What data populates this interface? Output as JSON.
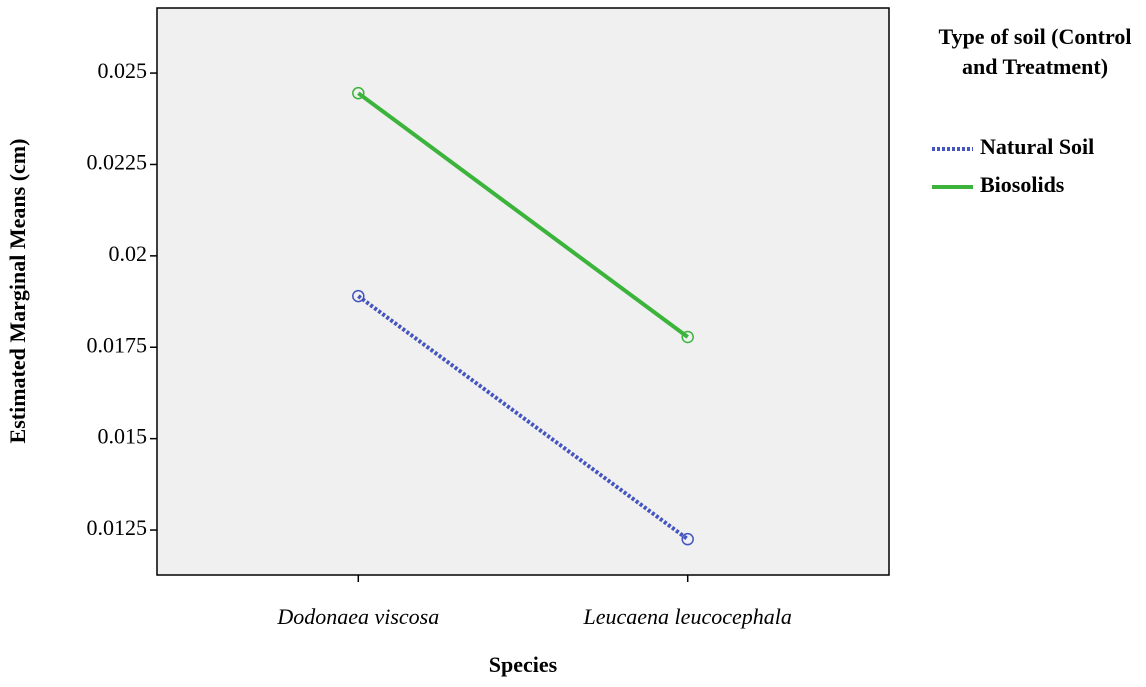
{
  "chart_data": {
    "type": "line",
    "x_label": "Species",
    "y_label": "Estimated Marginal Means (cm)",
    "legend_title": "Type of soil (Control and Treatment)",
    "legend_position": "right",
    "categories": [
      "Dodonaea viscosa",
      "Leucaena leucocephala"
    ],
    "series": [
      {
        "name": "Natural Soil",
        "color": "#4455c0",
        "dash": "dotted",
        "values": [
          0.0189,
          0.01225
        ]
      },
      {
        "name": "Biosolids",
        "color": "#3cb43c",
        "dash": "solid",
        "values": [
          0.02445,
          0.01778
        ]
      }
    ],
    "ylim": [
      0.01127,
      0.02678
    ],
    "yticks": [
      0.0125,
      0.015,
      0.0175,
      0.02,
      0.0225,
      0.025
    ]
  }
}
